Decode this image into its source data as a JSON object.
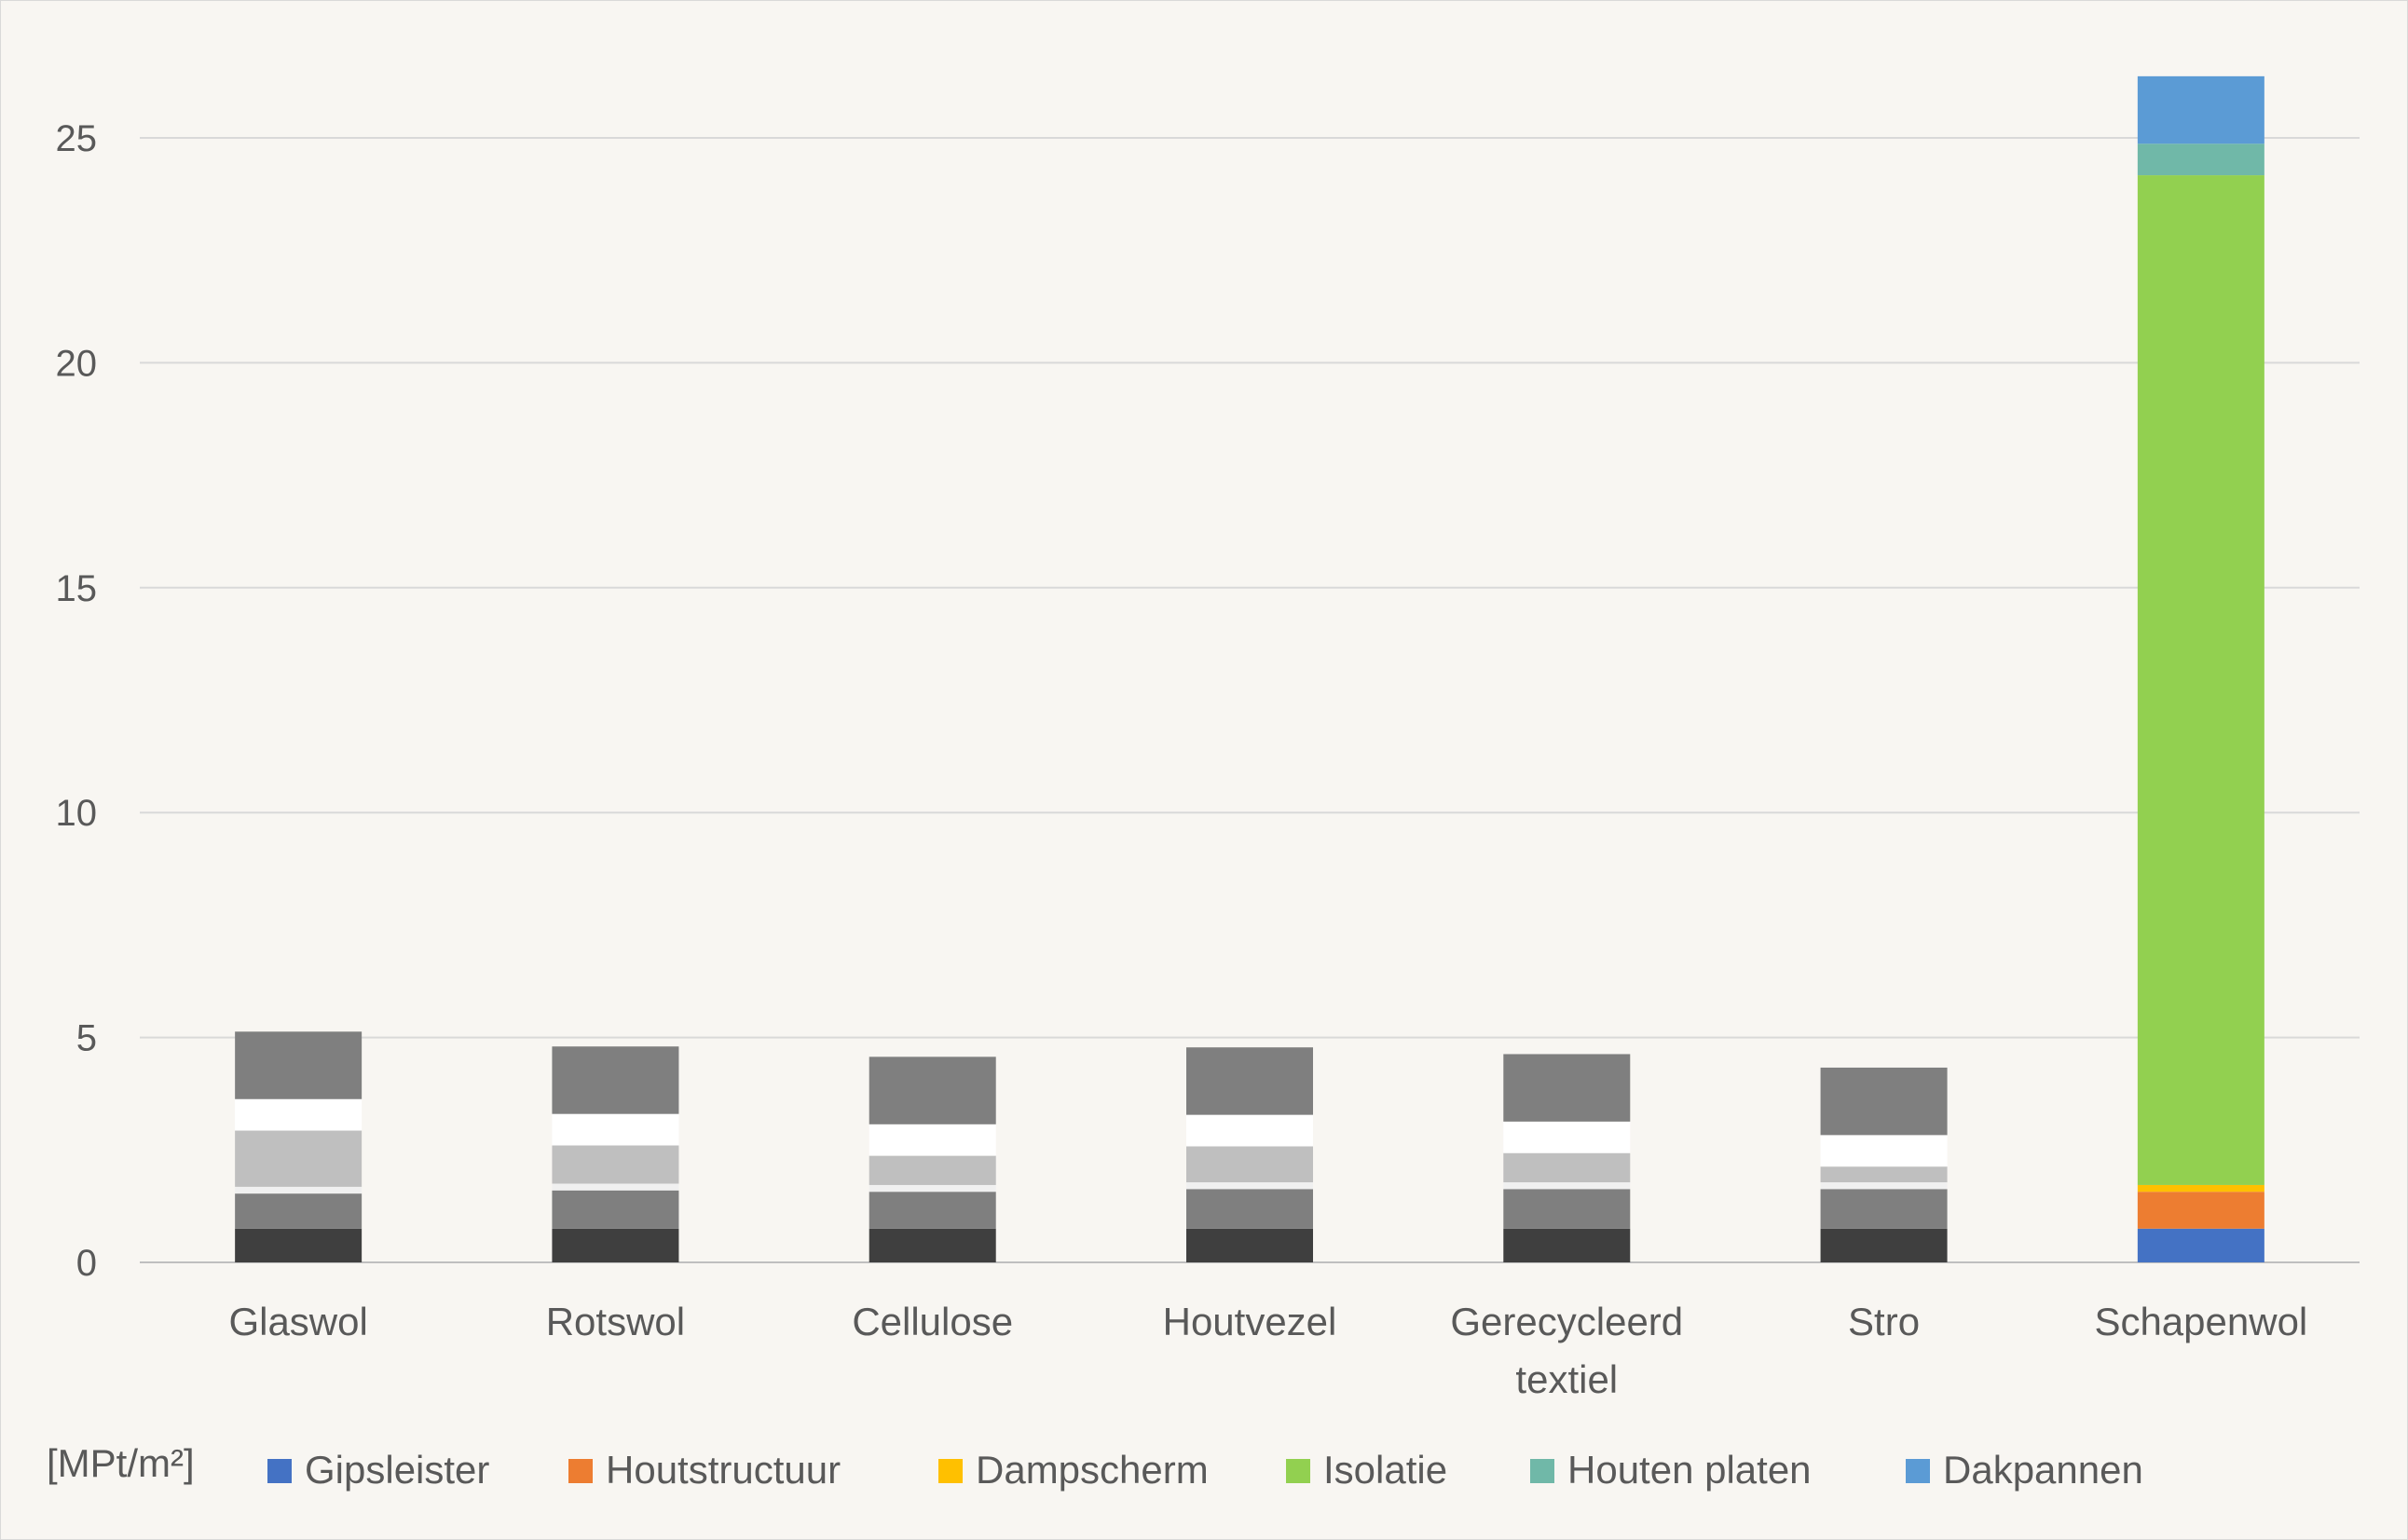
{
  "chart_data": {
    "type": "bar",
    "stacked": true,
    "unit_label": "[MPt/m²]",
    "categories": [
      [
        "Glaswol"
      ],
      [
        "Rotswol"
      ],
      [
        "Cellulose"
      ],
      [
        "Houtvezel"
      ],
      [
        "Gerecycleerd",
        "textiel"
      ],
      [
        "Stro"
      ],
      [
        "Schapenwol"
      ]
    ],
    "ylim": [
      0,
      27
    ],
    "yticks": [
      0,
      5,
      10,
      15,
      20,
      25
    ],
    "grid": true,
    "legend_position": "bottom",
    "series": [
      {
        "name": "Gipsleister",
        "color": "#4472c4",
        "values": [
          0.75,
          0.75,
          0.75,
          0.75,
          0.75,
          0.75,
          0.75
        ]
      },
      {
        "name": "Houtstructuur",
        "color": "#ed7d31",
        "values": [
          0.78,
          0.85,
          0.82,
          0.88,
          0.88,
          0.88,
          0.82
        ]
      },
      {
        "name": "Dampscherm",
        "color": "#ffc000",
        "values": [
          0.15,
          0.15,
          0.15,
          0.15,
          0.15,
          0.15,
          0.15
        ]
      },
      {
        "name": "Isolatie",
        "color": "#92d050",
        "values": [
          1.25,
          0.85,
          0.65,
          0.8,
          0.65,
          0.35,
          22.45
        ]
      },
      {
        "name": "Houten platen",
        "color": "#70b8a8",
        "values": [
          0.7,
          0.7,
          0.7,
          0.7,
          0.7,
          0.7,
          0.7
        ]
      },
      {
        "name": "Dakpannen",
        "color": "#5b9bd5",
        "values": [
          1.5,
          1.5,
          1.5,
          1.5,
          1.5,
          1.5,
          1.5
        ]
      }
    ],
    "greyscale_colors": [
      "#3f3f3f",
      "#7f7f7f",
      "#f0f0f0",
      "#bfbfbf",
      "#ffffff",
      "#7f7f7f"
    ],
    "greyscale_categories": [
      0,
      1,
      2,
      3,
      4,
      5
    ]
  }
}
